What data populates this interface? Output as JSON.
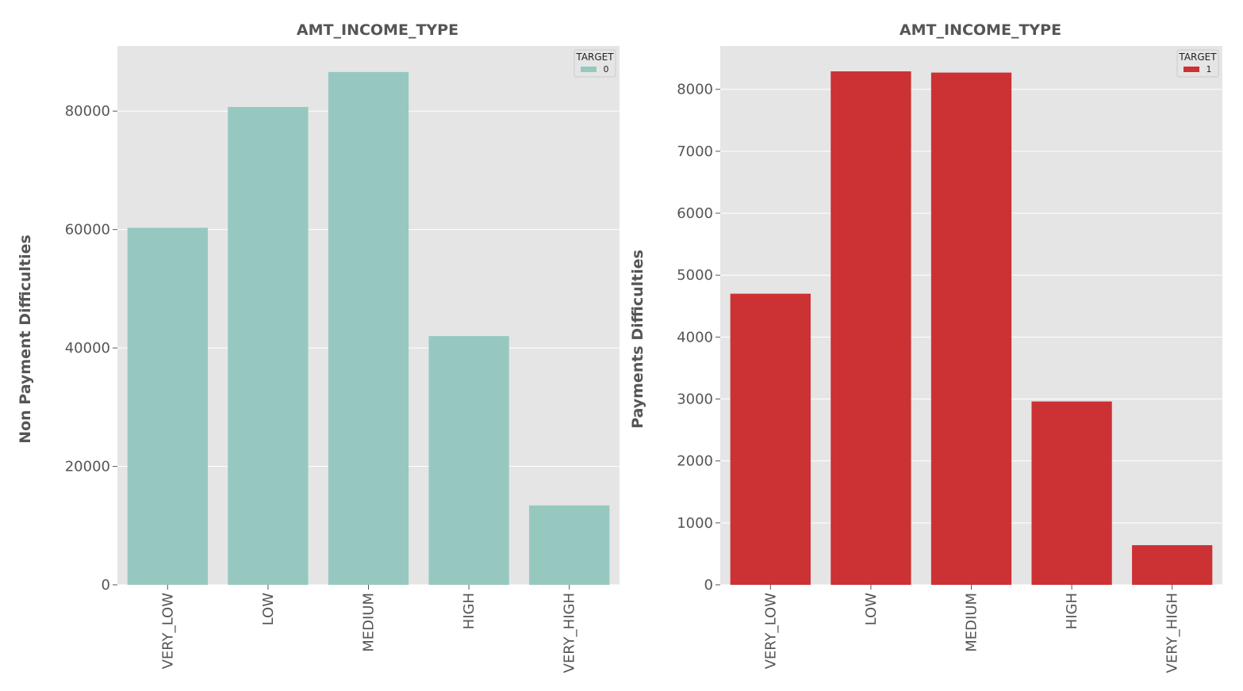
{
  "chart_data": [
    {
      "type": "bar",
      "title": "AMT_INCOME_TYPE",
      "xlabel": "",
      "ylabel": "Non Payment Difficulties",
      "categories": [
        "VERY_LOW",
        "LOW",
        "MEDIUM",
        "HIGH",
        "VERY_HIGH"
      ],
      "values": [
        60300,
        80700,
        86600,
        42000,
        13400
      ],
      "ylim": [
        0,
        91000
      ],
      "yticks": [
        0,
        20000,
        40000,
        60000,
        80000
      ],
      "ytick_labels": [
        "0",
        "20000",
        "40000",
        "60000",
        "80000"
      ],
      "grid": true,
      "legend": {
        "title": "TARGET",
        "entries": [
          "0"
        ],
        "placement": "top-right"
      },
      "bar_color": "#96c8c0",
      "background": "#e5e5e5"
    },
    {
      "type": "bar",
      "title": "AMT_INCOME_TYPE",
      "xlabel": "",
      "ylabel": "Payments Difficulties",
      "categories": [
        "VERY_LOW",
        "LOW",
        "MEDIUM",
        "HIGH",
        "VERY_HIGH"
      ],
      "values": [
        4700,
        8290,
        8270,
        2960,
        640
      ],
      "ylim": [
        0,
        8700
      ],
      "yticks": [
        0,
        1000,
        2000,
        3000,
        4000,
        5000,
        6000,
        7000,
        8000
      ],
      "ytick_labels": [
        "0",
        "1000",
        "2000",
        "3000",
        "4000",
        "5000",
        "6000",
        "7000",
        "8000"
      ],
      "grid": true,
      "legend": {
        "title": "TARGET",
        "entries": [
          "1"
        ],
        "placement": "top-right"
      },
      "bar_color": "#cc3134",
      "background": "#e5e5e5"
    }
  ]
}
